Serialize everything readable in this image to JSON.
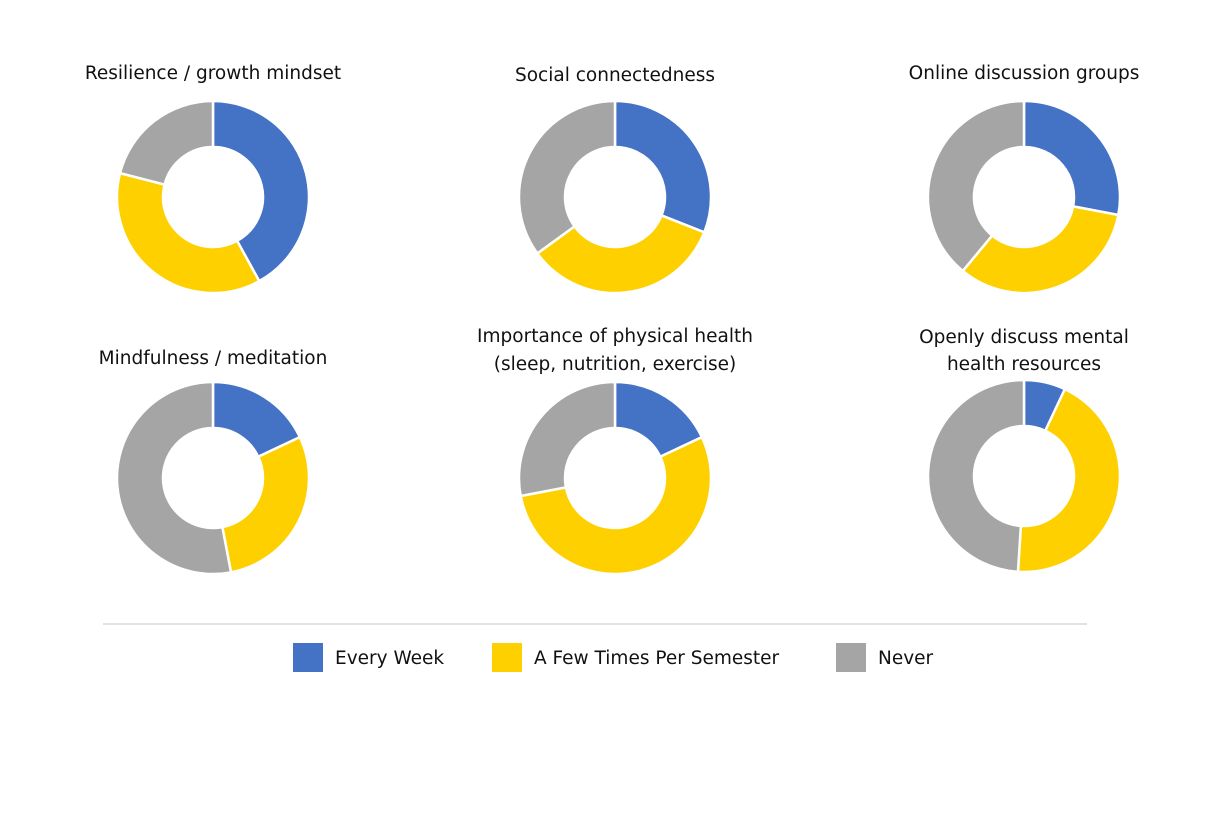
{
  "colors": {
    "every_week": "#4472C4",
    "few_times": "#FFD000",
    "never": "#A5A5A5",
    "divider": "#D9D9D9",
    "text": "#111111"
  },
  "legend": {
    "placement": "bottom",
    "items": [
      {
        "label": "Every Week",
        "color": "#4472C4"
      },
      {
        "label": "A Few Times Per Semester",
        "color": "#FFD000"
      },
      {
        "label": "Never",
        "color": "#A5A5A5"
      }
    ]
  },
  "chart_data": [
    {
      "type": "pie",
      "title": "Resilience / growth mindset",
      "categories": [
        "Every Week",
        "A Few Times Per Semester",
        "Never"
      ],
      "values": [
        42,
        37,
        21
      ]
    },
    {
      "type": "pie",
      "title": "Social connectedness",
      "categories": [
        "Every Week",
        "A Few Times Per Semester",
        "Never"
      ],
      "values": [
        31,
        34,
        35
      ]
    },
    {
      "type": "pie",
      "title": "Online discussion groups",
      "categories": [
        "Every Week",
        "A Few Times Per Semester",
        "Never"
      ],
      "values": [
        28,
        33,
        39
      ]
    },
    {
      "type": "pie",
      "title": "Mindfulness / meditation",
      "categories": [
        "Every Week",
        "A Few Times Per Semester",
        "Never"
      ],
      "values": [
        18,
        29,
        53
      ]
    },
    {
      "type": "pie",
      "title": "Importance of physical health\n(sleep, nutrition, exercise)",
      "categories": [
        "Every Week",
        "A Few Times Per Semester",
        "Never"
      ],
      "values": [
        18,
        54,
        28
      ]
    },
    {
      "type": "pie",
      "title": "Openly discuss mental\nhealth resources",
      "categories": [
        "Every Week",
        "A Few Times Per Semester",
        "Never"
      ],
      "values": [
        7,
        44,
        49
      ]
    }
  ]
}
